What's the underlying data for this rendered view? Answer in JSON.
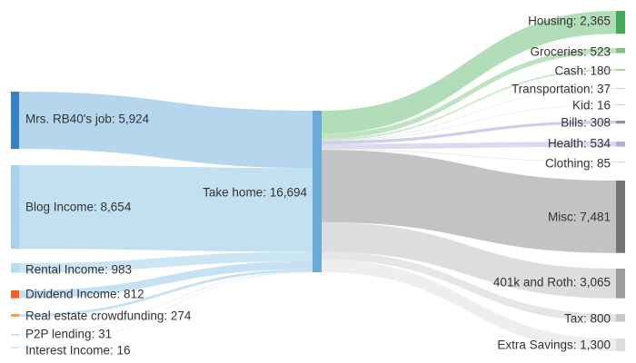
{
  "chart_data": {
    "type": "sankey",
    "title": "",
    "hub": {
      "label": "Take home: 16,694",
      "name": "Take home",
      "value": 16694,
      "color": "#6aaad6"
    },
    "sources": [
      {
        "label": "Mrs. RB40's job: 5,924",
        "name": "Mrs. RB40's job",
        "value": 5924,
        "node_color": "#3a7fbf",
        "link_color": "#a9cfea"
      },
      {
        "label": "Blog Income: 8,654",
        "name": "Blog Income",
        "value": 8654,
        "node_color": "#a9d3ea",
        "link_color": "#b9dbef"
      },
      {
        "label": "Rental Income: 983",
        "name": "Rental Income",
        "value": 983,
        "node_color": "#b9dbef",
        "link_color": "#c3e0f1"
      },
      {
        "label": "Dividend Income: 812",
        "name": "Dividend Income",
        "value": 812,
        "node_color": "#e8622c",
        "link_color": "#bcdcef"
      },
      {
        "label": "Real estate crowdfunding: 274",
        "name": "Real estate crowdfunding",
        "value": 274,
        "node_color": "#f29b55",
        "link_color": "#bcdcef"
      },
      {
        "label": "P2P lending: 31",
        "name": "P2P lending",
        "value": 31,
        "node_color": "#cfe5f3",
        "link_color": "#cfe5f3"
      },
      {
        "label": "Interest Income: 16",
        "name": "Interest Income",
        "value": 16,
        "node_color": "#d9ecf6",
        "link_color": "#d9ecf6"
      }
    ],
    "targets": [
      {
        "label": "Housing: 2,365",
        "name": "Housing",
        "value": 2365,
        "node_color": "#45a85a",
        "link_color": "#a8d9b0"
      },
      {
        "label": "Groceries: 523",
        "name": "Groceries",
        "value": 523,
        "node_color": "#7cc47f",
        "link_color": "#b7e0ba"
      },
      {
        "label": "Cash: 180",
        "name": "Cash",
        "value": 180,
        "node_color": "#a6d9a1",
        "link_color": "#c5e7c2"
      },
      {
        "label": "Transportation: 37",
        "name": "Transportation",
        "value": 37,
        "node_color": "#c9c9e6",
        "link_color": "#dcdcef"
      },
      {
        "label": "Kid: 16",
        "name": "Kid",
        "value": 16,
        "node_color": "#d3d3ea",
        "link_color": "#e2e2f1"
      },
      {
        "label": "Bills: 308",
        "name": "Bills",
        "value": 308,
        "node_color": "#8c8cc9",
        "link_color": "#c9c9e6"
      },
      {
        "label": "Health: 534",
        "name": "Health",
        "value": 534,
        "node_color": "#b1b1dd",
        "link_color": "#d6d6ee"
      },
      {
        "label": "Clothing: 85",
        "name": "Clothing",
        "value": 85,
        "node_color": "#d5d5ec",
        "link_color": "#e4e4f3"
      },
      {
        "label": "Misc: 7,481",
        "name": "Misc",
        "value": 7481,
        "node_color": "#737373",
        "link_color": "#bdbdbd"
      },
      {
        "label": "401k and Roth: 3,065",
        "name": "401k and Roth",
        "value": 3065,
        "node_color": "#9d9d9d",
        "link_color": "#d9d9d9"
      },
      {
        "label": "Tax: 800",
        "name": "Tax",
        "value": 800,
        "node_color": "#c6c6c6",
        "link_color": "#e3e3e3"
      },
      {
        "label": "Extra Savings: 1,300",
        "name": "Extra Savings",
        "value": 1300,
        "node_color": "#dcdcdc",
        "link_color": "#ececec"
      }
    ]
  }
}
